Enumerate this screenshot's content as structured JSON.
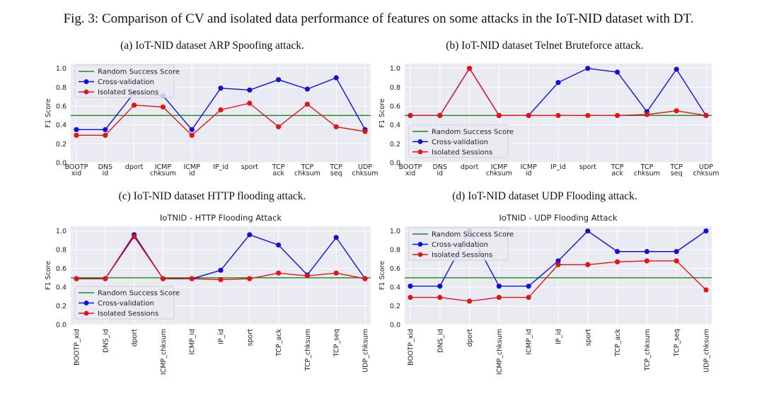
{
  "figure": {
    "caption": "Fig. 3: Comparison of CV and isolated data performance of features on some attacks in the IoT-NID dataset with DT."
  },
  "colors": {
    "random": "#1a8a1a",
    "cv": "#1010d8",
    "iso": "#e41414",
    "panel_bg": "#eaeaf2",
    "grid": "#ffffff"
  },
  "chart_data": [
    {
      "id": "a",
      "type": "line",
      "caption": "(a) IoT-NID dataset ARP Spoofing attack.",
      "title": "",
      "ylabel": "F1 Score",
      "xlabel": "",
      "ylim": [
        0,
        1.05
      ],
      "yticks": [
        "0.0",
        "0.2",
        "0.4",
        "0.6",
        "0.8",
        "1.0"
      ],
      "tick_rotation": "horizontal",
      "legend_position": "top-left",
      "categories": [
        "BOOTP\nxid",
        "DNS\nid",
        "dport",
        "ICMP\nchksum",
        "ICMP\nid",
        "IP_id",
        "sport",
        "TCP\nack",
        "TCP\nchksum",
        "TCP\nseq",
        "UDP\nchksum"
      ],
      "random_baseline": {
        "name": "Random Success Score",
        "value": 0.5
      },
      "series": [
        {
          "name": "Cross-validation",
          "values": [
            0.35,
            0.35,
            0.74,
            0.71,
            0.35,
            0.79,
            0.77,
            0.88,
            0.78,
            0.9,
            0.35
          ]
        },
        {
          "name": "Isolated Sessions",
          "values": [
            0.29,
            0.29,
            0.61,
            0.59,
            0.29,
            0.56,
            0.63,
            0.38,
            0.62,
            0.38,
            0.33
          ]
        }
      ]
    },
    {
      "id": "b",
      "type": "line",
      "caption": "(b) IoT-NID dataset Telnet Bruteforce attack.",
      "title": "",
      "ylabel": "F1 Score",
      "xlabel": "",
      "ylim": [
        0,
        1.05
      ],
      "yticks": [
        "0.0",
        "0.2",
        "0.4",
        "0.6",
        "0.8",
        "1.0"
      ],
      "tick_rotation": "horizontal",
      "legend_position": "center-left",
      "categories": [
        "BOOTP\nxid",
        "DNS\nid",
        "dport",
        "ICMP\nchksum",
        "ICMP\nid",
        "IP_id",
        "sport",
        "TCP\nack",
        "TCP\nchksum",
        "TCP\nseq",
        "UDP\nchksum"
      ],
      "random_baseline": {
        "name": "Random Success Score",
        "value": 0.5
      },
      "series": [
        {
          "name": "Cross-validation",
          "values": [
            0.5,
            0.5,
            1.0,
            0.5,
            0.5,
            0.85,
            1.0,
            0.96,
            0.54,
            0.99,
            0.5
          ]
        },
        {
          "name": "Isolated Sessions",
          "values": [
            0.5,
            0.5,
            1.0,
            0.5,
            0.5,
            0.5,
            0.5,
            0.5,
            0.51,
            0.55,
            0.5
          ]
        }
      ]
    },
    {
      "id": "c",
      "type": "line",
      "caption": "(c) IoT-NID dataset HTTP flooding attack.",
      "title": "IoTNID - HTTP Flooding Attack",
      "ylabel": "F1 Score",
      "xlabel": "",
      "ylim": [
        0,
        1.05
      ],
      "yticks": [
        "0.0",
        "0.2",
        "0.4",
        "0.6",
        "0.8",
        "1.0"
      ],
      "tick_rotation": "vertical",
      "legend_position": "bottom-left",
      "categories": [
        "BOOTP_xid",
        "DNS_id",
        "dport",
        "ICMP_chksum",
        "ICMP_id",
        "IP_id",
        "sport",
        "TCP_ack",
        "TCP_chksum",
        "TCP_seq",
        "UDP_chksum"
      ],
      "random_baseline": {
        "name": "Random Success Score",
        "value": 0.5
      },
      "series": [
        {
          "name": "Cross-validation",
          "values": [
            0.49,
            0.49,
            0.96,
            0.49,
            0.49,
            0.58,
            0.96,
            0.85,
            0.53,
            0.93,
            0.49
          ]
        },
        {
          "name": "Isolated Sessions",
          "values": [
            0.49,
            0.49,
            0.94,
            0.49,
            0.49,
            0.48,
            0.49,
            0.55,
            0.52,
            0.55,
            0.49
          ]
        }
      ]
    },
    {
      "id": "d",
      "type": "line",
      "caption": "(d) IoT-NID dataset UDP Flooding attack.",
      "title": "IoTNID - UDP Flooding Attack",
      "ylabel": "F1 Score",
      "xlabel": "",
      "ylim": [
        0,
        1.05
      ],
      "yticks": [
        "0.0",
        "0.2",
        "0.4",
        "0.6",
        "0.8",
        "1.0"
      ],
      "tick_rotation": "vertical",
      "legend_position": "top-left",
      "categories": [
        "BOOTP_xid",
        "DNS_id",
        "dport",
        "ICMP_chksum",
        "ICMP_id",
        "IP_id",
        "sport",
        "TCP_ack",
        "TCP_chksum",
        "TCP_seq",
        "UDP_chksum"
      ],
      "random_baseline": {
        "name": "Random Success Score",
        "value": 0.5
      },
      "series": [
        {
          "name": "Cross-validation",
          "values": [
            0.41,
            0.41,
            1.0,
            0.41,
            0.41,
            0.68,
            1.0,
            0.78,
            0.78,
            0.78,
            1.0
          ]
        },
        {
          "name": "Isolated Sessions",
          "values": [
            0.29,
            0.29,
            0.25,
            0.29,
            0.29,
            0.64,
            0.64,
            0.67,
            0.68,
            0.68,
            0.37
          ]
        }
      ]
    }
  ]
}
